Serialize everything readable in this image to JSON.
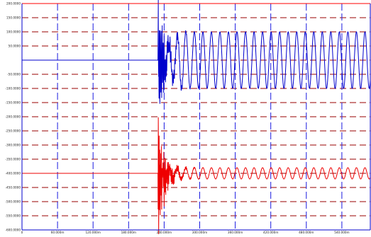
{
  "chart_data": {
    "type": "line",
    "title": "",
    "xlabel": "",
    "ylabel": "",
    "xlim": [
      0,
      980
    ],
    "ylim": [
      -600,
      200
    ],
    "x_ticks": [
      0,
      100,
      200,
      300,
      400,
      500,
      600,
      700,
      800,
      900
    ],
    "x_tick_labels": [
      "0",
      "60.000m",
      "120.000m",
      "180.000m",
      "240.000m",
      "300.000m",
      "360.000m",
      "420.000m",
      "480.000m",
      "540.000m"
    ],
    "y_ticks": [
      200,
      150,
      100,
      50,
      0,
      -50,
      -100,
      -150,
      -200,
      -250,
      -300,
      -350,
      -400,
      -450,
      -500,
      -550,
      -600
    ],
    "y_tick_labels": [
      "200.0000",
      "150.0000",
      "100.0000",
      "50.0000",
      "",
      "-50.0000",
      "-100.0000",
      "-150.0000",
      "-200.0000",
      "-250.0000",
      "-300.0000",
      "-350.0000",
      "-400.0000",
      "-450.0000",
      "-500.0000",
      "-550.0000",
      "-600.0000"
    ],
    "grid": true,
    "series": [
      {
        "color": "#0000cc",
        "baseline": 0,
        "event_x": 383,
        "steady_amplitude": 100,
        "steady_center": 0,
        "period": 24
      },
      {
        "color": "#ee0000",
        "baseline": -400,
        "event_x": 383,
        "steady_amplitude": 20,
        "steady_center": -400,
        "period": 24
      }
    ]
  }
}
